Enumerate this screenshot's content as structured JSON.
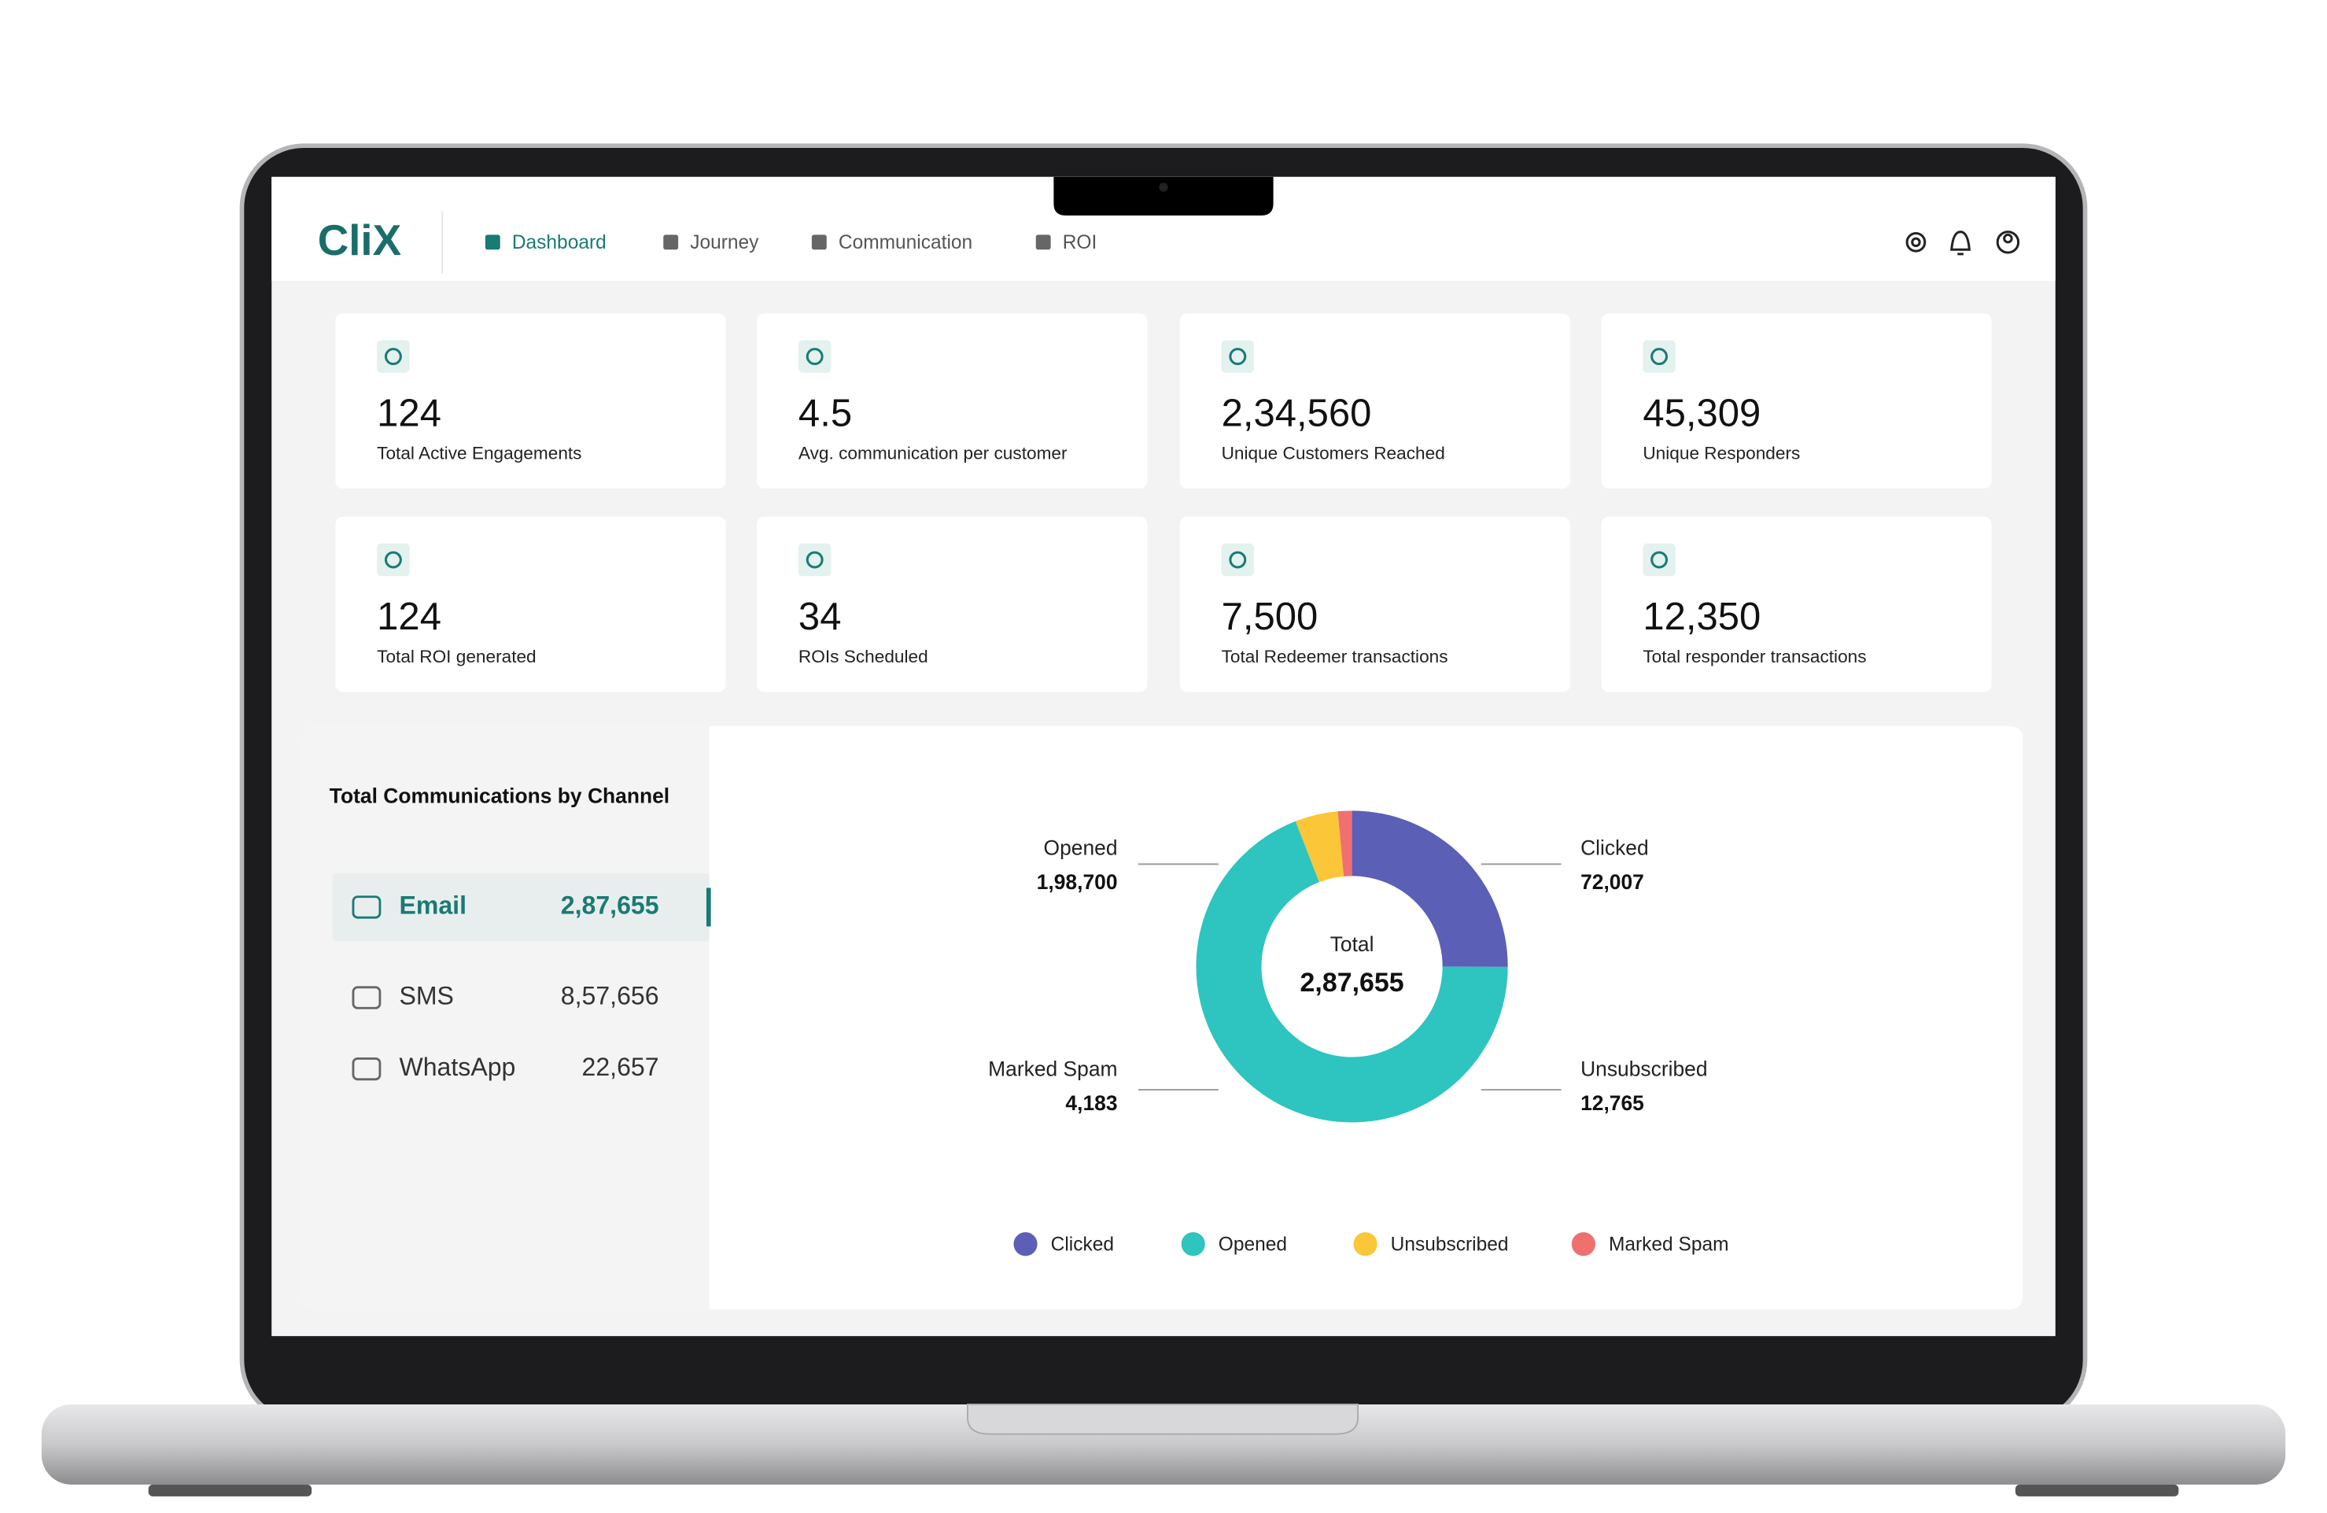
{
  "header": {
    "logo": "CliX",
    "nav": [
      "Dashboard",
      "Journey",
      "Communication",
      "ROI"
    ]
  },
  "stats": [
    {
      "value": "124",
      "label": "Total Active Engagements"
    },
    {
      "value": "4.5",
      "label": "Avg. communication per customer"
    },
    {
      "value": "2,34,560",
      "label": "Unique Customers Reached"
    },
    {
      "value": "45,309",
      "label": "Unique Responders"
    },
    {
      "value": "124",
      "label": "Total ROI generated"
    },
    {
      "value": "34",
      "label": "ROIs Scheduled"
    },
    {
      "value": "7,500",
      "label": "Total Redeemer transactions"
    },
    {
      "value": "12,350",
      "label": "Total responder transactions"
    }
  ],
  "channels": {
    "title": "Total Communications by Channel",
    "items": [
      {
        "name": "Email",
        "value": "2,87,655"
      },
      {
        "name": "SMS",
        "value": "8,57,656"
      },
      {
        "name": "WhatsApp",
        "value": "22,657"
      }
    ]
  },
  "chart_data": {
    "type": "donut",
    "categories": [
      "Clicked",
      "Opened",
      "Unsubscribed",
      "Marked Spam"
    ],
    "values": [
      72007,
      198700,
      12765,
      4183
    ],
    "value_labels": [
      "72,007",
      "1,98,700",
      "12,765",
      "4,183"
    ],
    "colors": [
      "#5b5fb5",
      "#2ec4bf",
      "#fbc638",
      "#f07070"
    ],
    "center_label": "Total",
    "center_value": "2,87,655"
  }
}
